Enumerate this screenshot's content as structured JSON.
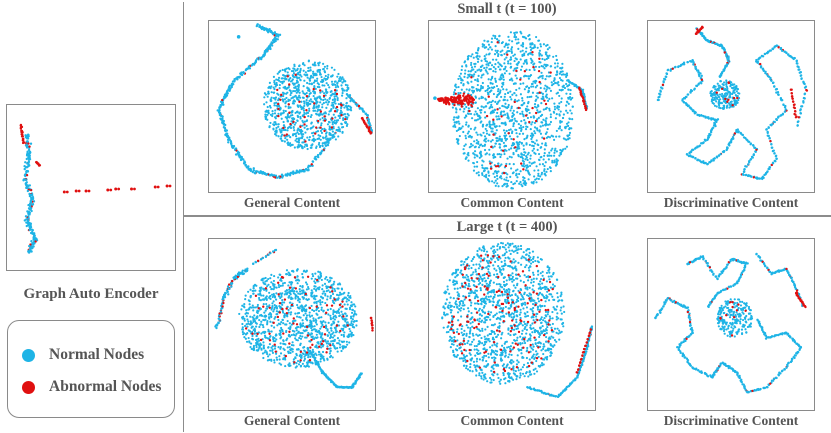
{
  "left": {
    "caption": "Graph Auto Encoder"
  },
  "legend": {
    "items": [
      {
        "label": "Normal Nodes",
        "color": "#1eb4e6"
      },
      {
        "label": "Abnormal Nodes",
        "color": "#e01010"
      }
    ]
  },
  "rows": [
    {
      "title": "Small t (t = 100)",
      "panels": [
        "General Content",
        "Common Content",
        "Discriminative Content"
      ]
    },
    {
      "title": "Large t (t = 400)",
      "panels": [
        "General Content",
        "Common Content",
        "Discriminative Content"
      ]
    }
  ],
  "colors": {
    "normal": "#1eb4e6",
    "abnormal": "#e01010",
    "frame": "#8a8a8a"
  }
}
